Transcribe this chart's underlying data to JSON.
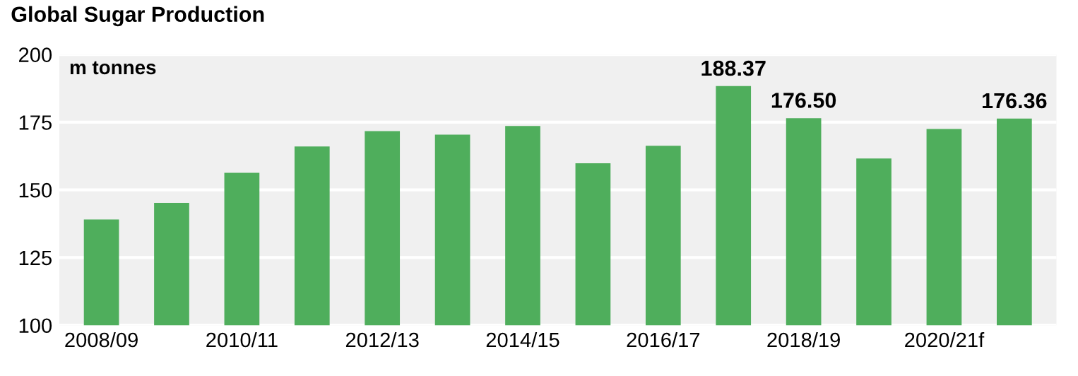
{
  "chart_data": {
    "type": "bar",
    "title": "Global Sugar Production",
    "ylabel": "m tonnes",
    "categories": [
      "2008/09",
      null,
      "2010/11",
      null,
      "2012/13",
      null,
      "2014/15",
      null,
      "2016/17",
      null,
      "2018/19",
      null,
      "2020/21f",
      null
    ],
    "values": [
      139.1,
      145.2,
      156.3,
      166.0,
      171.7,
      170.4,
      173.6,
      159.8,
      166.3,
      188.37,
      176.5,
      161.6,
      172.5,
      176.36
    ],
    "value_labels": [
      null,
      null,
      null,
      null,
      null,
      null,
      null,
      null,
      null,
      "188.37",
      "176.50",
      null,
      null,
      "176.36"
    ],
    "color": "#4fae5c",
    "ylim": [
      100,
      200
    ],
    "yticks": [
      100,
      125,
      150,
      175,
      200
    ],
    "grid": "y"
  }
}
